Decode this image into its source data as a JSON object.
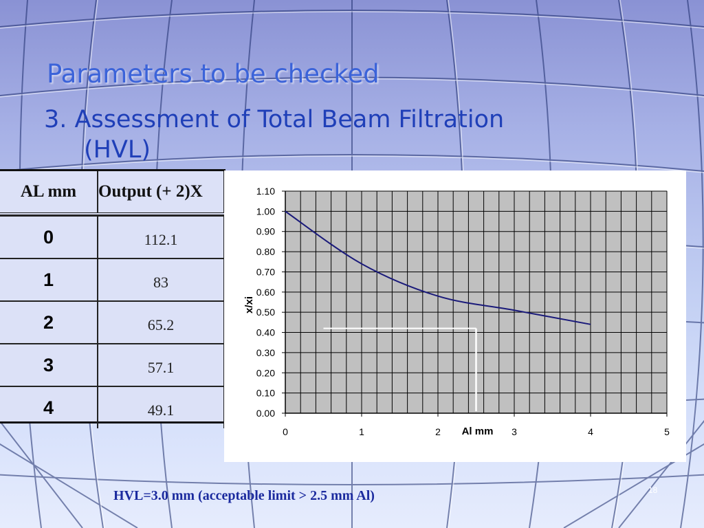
{
  "slide": {
    "title": "Parameters to be checked",
    "subtitle_line1": "3. Assessment of Total Beam Filtration",
    "subtitle_line2": "(HVL)",
    "footer_note": "HVL=3.0 mm (acceptable limit > 2.5 mm Al)",
    "slide_number": "18"
  },
  "table": {
    "headers": [
      "AL mm",
      "Output (+ 2)X"
    ],
    "rows": [
      {
        "al": "0",
        "output": "112.1"
      },
      {
        "al": "1",
        "output": "83"
      },
      {
        "al": "2",
        "output": "65.2"
      },
      {
        "al": "3",
        "output": "57.1"
      },
      {
        "al": "4",
        "output": "49.1"
      }
    ]
  },
  "chart_data": {
    "type": "line",
    "title": "",
    "xlabel": "Al mm",
    "ylabel": "x/xi",
    "xlim": [
      0,
      5
    ],
    "ylim": [
      0,
      1.1
    ],
    "x_ticks": [
      "0",
      "1",
      "2",
      "3",
      "4",
      "5"
    ],
    "y_ticks": [
      "0.00",
      "0.10",
      "0.20",
      "0.30",
      "0.40",
      "0.50",
      "0.60",
      "0.70",
      "0.80",
      "0.90",
      "1.00",
      "1.10"
    ],
    "grid": true,
    "series": [
      {
        "x": [
          0,
          1,
          2,
          3,
          4
        ],
        "y": [
          1.0,
          0.74,
          0.58,
          0.51,
          0.44
        ]
      }
    ],
    "annotation": {
      "hvl_y": 0.42,
      "hvl_x": 2.5,
      "x_start": 0.5
    },
    "colors": {
      "plot_bg": "#c0c0c0",
      "line": "#1a1a7a",
      "grid": "#000000",
      "marker": "#ffffff"
    }
  }
}
